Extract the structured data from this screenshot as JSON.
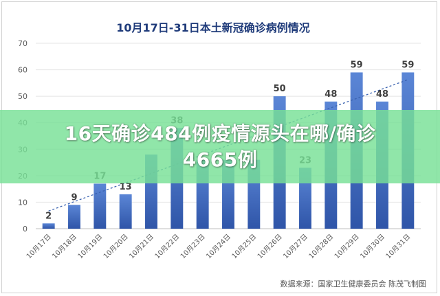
{
  "chart_data": {
    "type": "bar",
    "title": "10月17日-31日本土新冠确诊病例情况",
    "categories": [
      "10月17日",
      "10月18日",
      "10月19日",
      "10月20日",
      "10月21日",
      "10月22日",
      "10月23日",
      "10月24日",
      "10月25日",
      "10月26日",
      "10月27日",
      "10月28日",
      "10月29日",
      "10月30日",
      "10月31日"
    ],
    "values": [
      2,
      9,
      17,
      13,
      28,
      38,
      26,
      26,
      26,
      50,
      23,
      48,
      59,
      48,
      59
    ],
    "data_labels": [
      "2",
      "9",
      "17",
      "13",
      "",
      "38",
      "",
      "",
      "",
      "50",
      "23",
      "48",
      "59",
      "48",
      "59"
    ],
    "yticks": [
      "0",
      "10",
      "20",
      "30",
      "40",
      "50",
      "60",
      "70"
    ],
    "ylim": [
      0,
      70
    ],
    "trendline": true,
    "bar_color": "#4472c4",
    "bar_color_dark": "#2f55a8",
    "trend_color": "#3a62b0",
    "grid": true
  },
  "banner": {
    "line1": "16天确诊484例疫情源头在哪/确诊",
    "line2": "4665例",
    "color": "#78e196"
  },
  "source_text": "数据来源：国家卫生健康委员会    陈茂飞制图"
}
